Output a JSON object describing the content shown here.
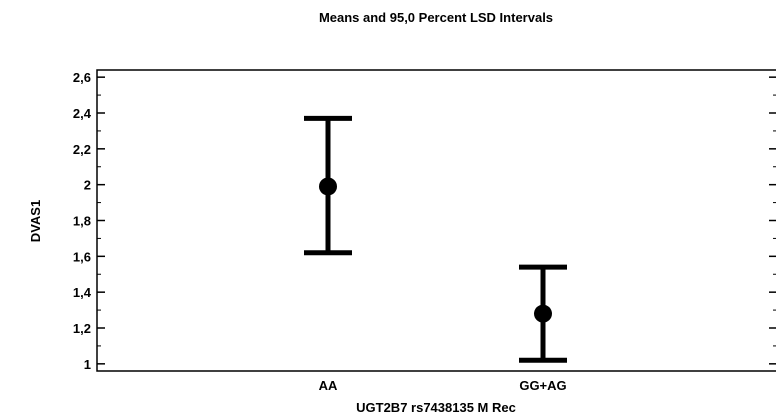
{
  "chart_data": {
    "type": "interval",
    "title": "Means and 95,0 Percent LSD Intervals",
    "xlabel": "UGT2B7 rs7438135 M Rec",
    "ylabel": "DVAS1",
    "categories": [
      "AA",
      "GG+AG"
    ],
    "series": [
      {
        "means": [
          1.99,
          1.28
        ],
        "lower": [
          1.62,
          1.02
        ],
        "upper": [
          2.37,
          1.54
        ]
      }
    ],
    "ylim": [
      0.96,
      2.64
    ],
    "yticks": [
      1,
      1.2,
      1.4,
      1.6,
      1.8,
      2,
      2.2,
      2.4,
      2.6
    ],
    "ytick_labels": [
      "1",
      "1,2",
      "1,4",
      "1,6",
      "1,8",
      "2",
      "2,2",
      "2,4",
      "2,6"
    ],
    "grid": false,
    "colors": {
      "marks": "#000000",
      "axes": "#000000"
    }
  }
}
